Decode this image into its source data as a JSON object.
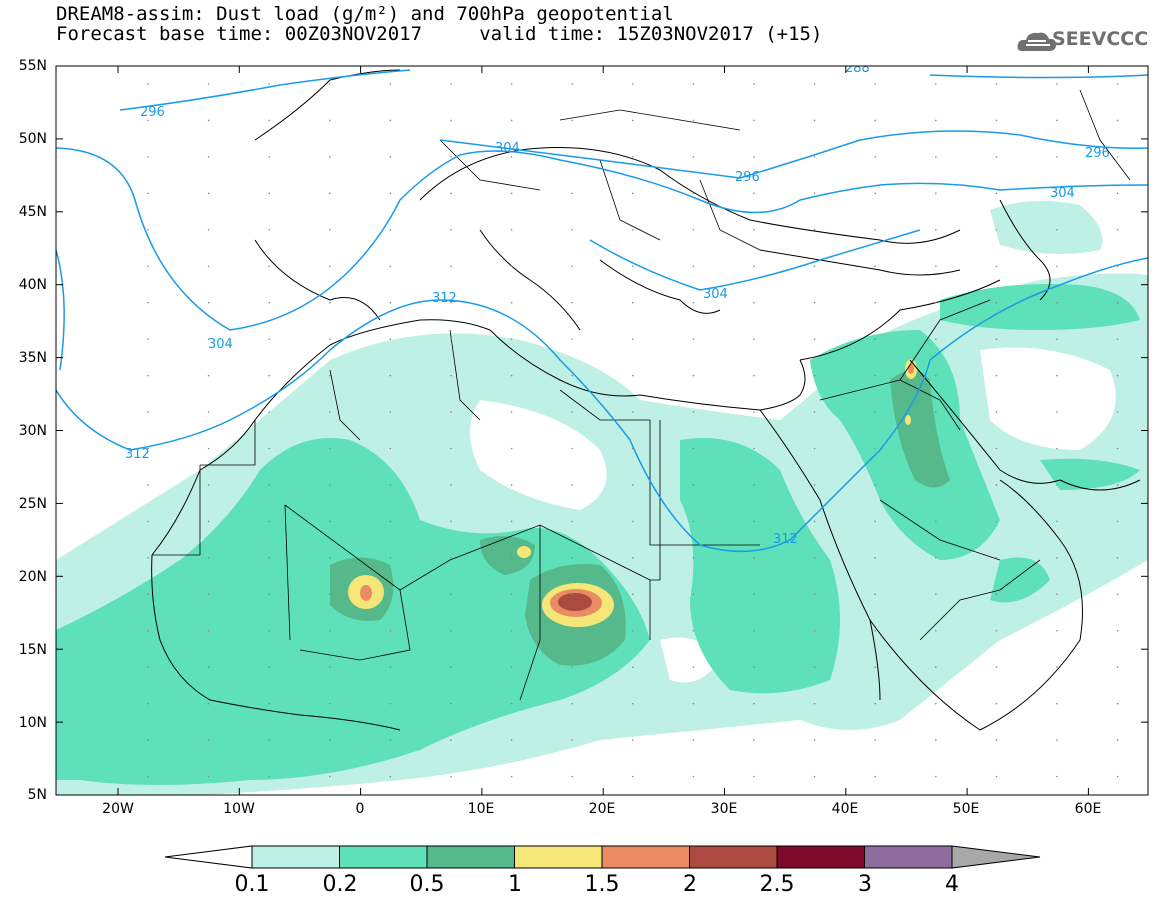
{
  "header": {
    "title_line1": "DREAM8-assim: Dust load (g/m²) and 700hPa geopotential",
    "title_line2": "Forecast base time: 00Z03NOV2017     valid time: 15Z03NOV2017 (+15)",
    "logo_text": "SEEVCCC"
  },
  "map": {
    "lat_labels": [
      "55N",
      "50N",
      "45N",
      "40N",
      "35N",
      "30N",
      "25N",
      "20N",
      "15N",
      "10N",
      "5N"
    ],
    "lon_labels": [
      "20W",
      "10W",
      "0",
      "10E",
      "20E",
      "30E",
      "40E",
      "50E",
      "60E"
    ],
    "contour_labels": [
      "296",
      "296",
      "304",
      "304",
      "304",
      "304",
      "312",
      "312",
      "312",
      "296",
      "288"
    ],
    "contour_color": "#1a9be6"
  },
  "colorbar": {
    "levels": [
      "0.1",
      "0.2",
      "0.5",
      "1",
      "1.5",
      "2",
      "2.5",
      "3",
      "4"
    ],
    "colors": [
      "#bff0e6",
      "#5ee0b8",
      "#56b98c",
      "#f5e678",
      "#ea8b64",
      "#aa4a40",
      "#7d0a2a",
      "#8e6c9e",
      "#a8a8a8"
    ]
  }
}
